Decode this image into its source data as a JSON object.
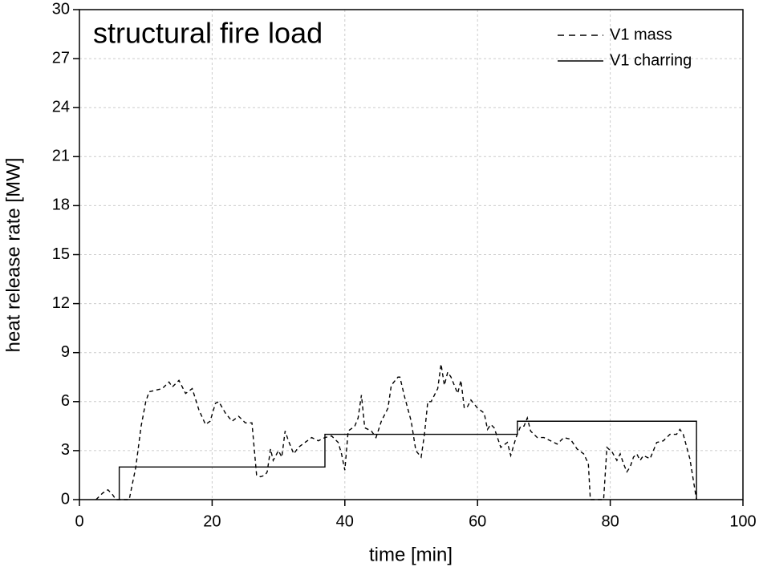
{
  "chart_data": {
    "type": "line",
    "title": "structural fire load",
    "xlabel": "time [min]",
    "ylabel": "heat release rate [MW]",
    "xlim": [
      0,
      100
    ],
    "xticks": [
      0,
      20,
      40,
      60,
      80,
      100
    ],
    "ylim": [
      0,
      30
    ],
    "yticks": [
      0,
      3,
      6,
      9,
      12,
      15,
      18,
      21,
      24,
      27,
      30
    ],
    "grid": true,
    "legend": "upper right",
    "series": [
      {
        "name": "V1 mass",
        "color": "#000000",
        "dash": true,
        "x": [
          2.5,
          3.5,
          4.3,
          5,
          5.5,
          7.5,
          8.5,
          9.3,
          10,
          10.5,
          11.5,
          12.5,
          13.5,
          14,
          15,
          16,
          17,
          18,
          19,
          19.7,
          20.5,
          21,
          22,
          23,
          24,
          25,
          26,
          26.7,
          27.3,
          28,
          28.3,
          28.8,
          29.2,
          30,
          30.5,
          31,
          31.5,
          32.3,
          33,
          34,
          35,
          36,
          37,
          38,
          39,
          39.5,
          40,
          40.5,
          41.5,
          42,
          42.5,
          43,
          44,
          44.7,
          45.5,
          46.5,
          47,
          48,
          48.3,
          49,
          50,
          50.7,
          51.5,
          52,
          52.5,
          53,
          54,
          54.5,
          55,
          55.5,
          56,
          57,
          57.5,
          58,
          58.5,
          59,
          60,
          61,
          61.5,
          62,
          62.5,
          63.5,
          64.5,
          65,
          65.8,
          66.5,
          67,
          67.5,
          68,
          69,
          70,
          71,
          72,
          73,
          74,
          75,
          76,
          76.7,
          77,
          78,
          79,
          79.5,
          80.3,
          81,
          81.5,
          82,
          82.5,
          83,
          83.5,
          84,
          84.5,
          85,
          86,
          87,
          88,
          89,
          90,
          90.5,
          91,
          92,
          93
        ],
        "values": [
          0,
          0.4,
          0.6,
          0.3,
          0,
          0,
          2,
          4.5,
          6,
          6.6,
          6.7,
          6.8,
          7.2,
          6.9,
          7.3,
          6.5,
          6.8,
          5.5,
          4.6,
          4.8,
          5.9,
          6,
          5.3,
          4.8,
          5.1,
          4.7,
          4.7,
          1.5,
          1.4,
          1.5,
          1.7,
          3.1,
          2.4,
          3,
          2.6,
          4.2,
          3.6,
          2.8,
          3.2,
          3.5,
          3.8,
          3.6,
          3.8,
          3.9,
          3.5,
          2.8,
          1.8,
          4.2,
          4.5,
          5,
          6.4,
          4.4,
          4.2,
          3.8,
          4.8,
          5.6,
          7,
          7.5,
          7.5,
          6.3,
          4.8,
          3,
          2.6,
          4,
          6,
          6,
          6.8,
          8.3,
          7,
          7.8,
          7.5,
          6.5,
          7.3,
          5.6,
          5.7,
          6.1,
          5.6,
          5.3,
          4.3,
          4.6,
          4.4,
          3.2,
          3.5,
          2.7,
          3.8,
          4.5,
          4.5,
          5,
          4.2,
          3.8,
          3.8,
          3.6,
          3.4,
          3.8,
          3.7,
          3.1,
          2.8,
          2.2,
          0,
          0,
          0,
          3.2,
          2.9,
          2.4,
          2.8,
          2.2,
          1.7,
          2,
          2.6,
          2.8,
          2.4,
          2.7,
          2.5,
          3.5,
          3.6,
          4,
          4,
          4.3,
          4,
          2.5,
          0
        ]
      },
      {
        "name": "V1 charring",
        "color": "#000000",
        "dash": false,
        "x": [
          6,
          6,
          37,
          37,
          66,
          66,
          93,
          93
        ],
        "values": [
          0,
          2,
          2,
          4,
          4,
          4.8,
          4.8,
          0
        ]
      }
    ]
  }
}
